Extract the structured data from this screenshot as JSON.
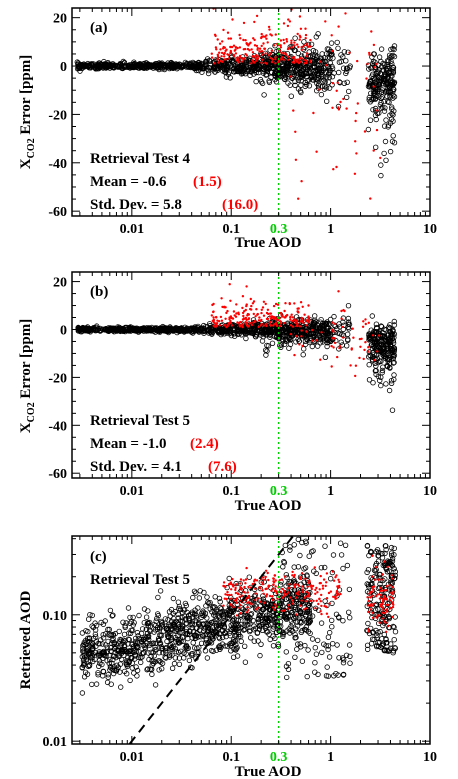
{
  "chart_data": [
    {
      "panel": "(a)",
      "type": "scatter",
      "xlabel": "True AOD",
      "ylabel_main": "X",
      "ylabel_sub": "CO2",
      "ylabel_rest": " Error [ppm]",
      "x_scale": "log",
      "xlim": [
        0.0025,
        10
      ],
      "ylim": [
        -62,
        24
      ],
      "xticks": [
        "0.01",
        "0.1",
        "1",
        "10"
      ],
      "xtick_values": [
        0.01,
        0.1,
        1,
        10
      ],
      "green_tick": "0.3",
      "green_line_x": 0.3,
      "yticks": [
        20,
        0,
        -20,
        -40,
        -60
      ],
      "ytick_labels": [
        "20",
        "0",
        "-20",
        "-40",
        "-60"
      ],
      "annotation": {
        "title": "Retrieval Test 4",
        "mean_label": "Mean = -0.6",
        "mean_alt": "(1.5)",
        "std_label": "Std. Dev. = 5.8",
        "std_alt": "(16.0)"
      },
      "series": [
        {
          "marker": "open-circle",
          "color": "#000000",
          "mean": -0.6,
          "std": 5.8
        },
        {
          "marker": "dot",
          "color": "#ff0000",
          "mean": 1.5,
          "std": 16.0
        }
      ]
    },
    {
      "panel": "(b)",
      "type": "scatter",
      "xlabel": "True AOD",
      "ylabel_main": "X",
      "ylabel_sub": "CO2",
      "ylabel_rest": " Error [ppm]",
      "x_scale": "log",
      "xlim": [
        0.0025,
        10
      ],
      "ylim": [
        -62,
        24
      ],
      "xticks": [
        "0.01",
        "0.1",
        "1",
        "10"
      ],
      "xtick_values": [
        0.01,
        0.1,
        1,
        10
      ],
      "green_tick": "0.3",
      "green_line_x": 0.3,
      "yticks": [
        20,
        0,
        -20,
        -40,
        -60
      ],
      "ytick_labels": [
        "20",
        "0",
        "-20",
        "-40",
        "-60"
      ],
      "annotation": {
        "title": "Retrieval Test 5",
        "mean_label": "Mean = -1.0",
        "mean_alt": "(2.4)",
        "std_label": "Std. Dev. = 4.1",
        "std_alt": "(7.6)"
      },
      "series": [
        {
          "marker": "open-circle",
          "color": "#000000",
          "mean": -1.0,
          "std": 4.1
        },
        {
          "marker": "dot",
          "color": "#ff0000",
          "mean": 2.4,
          "std": 7.6
        }
      ]
    },
    {
      "panel": "(c)",
      "type": "scatter",
      "xlabel": "True AOD",
      "ylabel": "Retrieved AOD",
      "x_scale": "log",
      "y_scale": "log",
      "xlim": [
        0.0025,
        10
      ],
      "ylim": [
        0.0095,
        0.42
      ],
      "xticks": [
        "0.01",
        "0.1",
        "1",
        "10"
      ],
      "xtick_values": [
        0.01,
        0.1,
        1,
        10
      ],
      "green_tick": "0.3",
      "green_line_x": 0.3,
      "yticks": [
        "0.01",
        "0.10"
      ],
      "ytick_values": [
        0.01,
        0.1
      ],
      "annotation": {
        "title": "Retrieval Test 5"
      },
      "one_to_one_line": true,
      "series": [
        {
          "marker": "open-circle",
          "color": "#000000"
        },
        {
          "marker": "dot",
          "color": "#ff0000"
        }
      ]
    }
  ],
  "colors": {
    "black": "#000000",
    "red": "#ff0000",
    "green": "#00cc00"
  }
}
